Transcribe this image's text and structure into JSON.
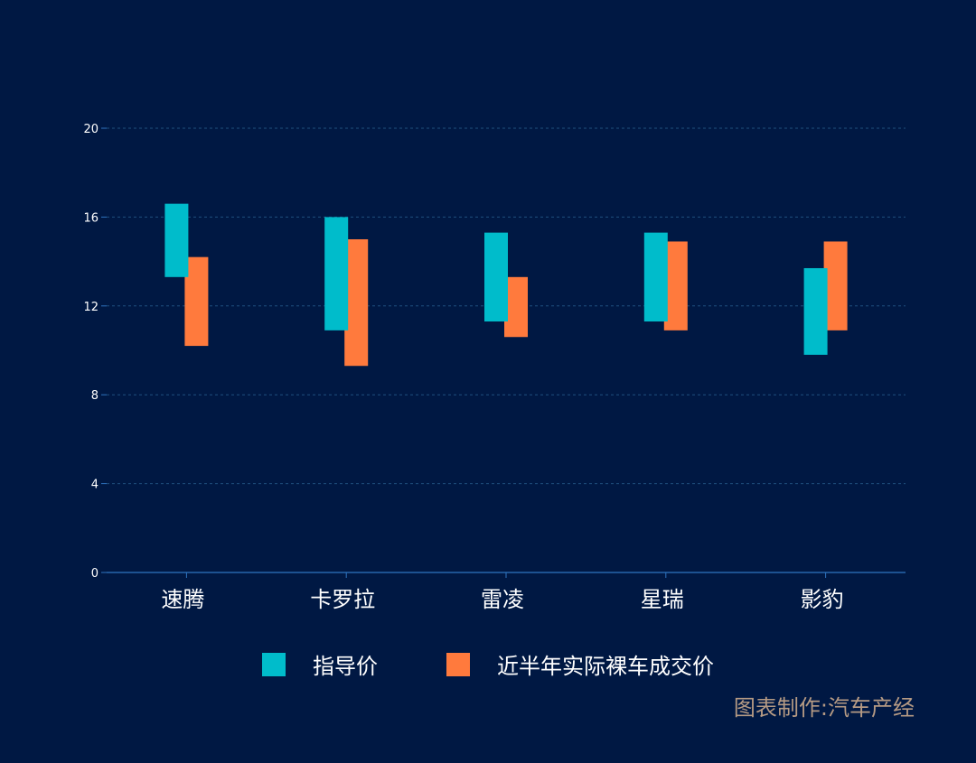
{
  "chart_data": {
    "type": "bar",
    "subtype": "floating-range",
    "categories": [
      "速腾",
      "卡罗拉",
      "雷凌",
      "星瑞",
      "影豹"
    ],
    "series": [
      {
        "name": "指导价",
        "color": "#00bccb",
        "ranges": [
          [
            13.3,
            16.6
          ],
          [
            10.9,
            16.0
          ],
          [
            11.3,
            15.3
          ],
          [
            11.3,
            15.3
          ],
          [
            9.8,
            13.7
          ]
        ]
      },
      {
        "name": "近半年实际裸车成交价",
        "color": "#ff7a3d",
        "ranges": [
          [
            10.2,
            14.2
          ],
          [
            9.3,
            15.0
          ],
          [
            10.6,
            13.3
          ],
          [
            10.9,
            14.9
          ],
          [
            10.9,
            14.9
          ]
        ]
      }
    ],
    "yticks": [
      "0",
      "4",
      "8",
      "12",
      "16",
      "20"
    ],
    "ylim": [
      0,
      20
    ],
    "grid": true,
    "legend_position": "bottom"
  },
  "credit": "图表制作:汽车产经",
  "colors": {
    "background": "#001843",
    "axis": "#2f74c0",
    "grid": "#1f4f7e",
    "tick_text": "#ffffff",
    "credit_text": "#b59a84"
  }
}
